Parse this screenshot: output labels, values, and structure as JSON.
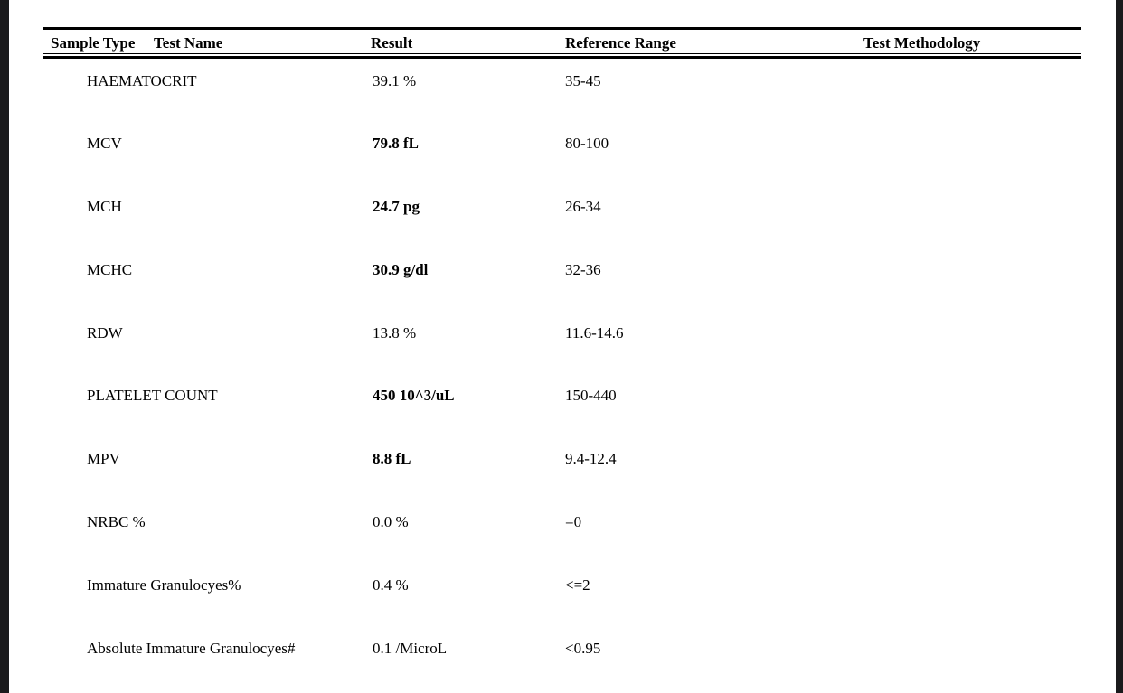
{
  "colors": {
    "frame": "#1a1a1c",
    "paper": "#ffffff",
    "ink": "#000000"
  },
  "report_table": {
    "columns": [
      {
        "label": "Sample Type"
      },
      {
        "label": "Test Name"
      },
      {
        "label": "Result"
      },
      {
        "label": "Reference Range"
      },
      {
        "label": "Test Methodology"
      }
    ],
    "rows": [
      {
        "test_name": "HAEMATOCRIT",
        "result": "39.1 %",
        "result_abnormal": false,
        "reference_range": "35-45",
        "test_methodology": ""
      },
      {
        "test_name": "MCV",
        "result": "79.8 fL",
        "result_abnormal": true,
        "reference_range": "80-100",
        "test_methodology": ""
      },
      {
        "test_name": "MCH",
        "result": "24.7 pg",
        "result_abnormal": true,
        "reference_range": "26-34",
        "test_methodology": ""
      },
      {
        "test_name": "MCHC",
        "result": "30.9 g/dl",
        "result_abnormal": true,
        "reference_range": "32-36",
        "test_methodology": ""
      },
      {
        "test_name": "RDW",
        "result": "13.8 %",
        "result_abnormal": false,
        "reference_range": "11.6-14.6",
        "test_methodology": ""
      },
      {
        "test_name": "PLATELET COUNT",
        "result": "450 10^3/uL",
        "result_abnormal": true,
        "reference_range": "150-440",
        "test_methodology": ""
      },
      {
        "test_name": "MPV",
        "result": "8.8 fL",
        "result_abnormal": true,
        "reference_range": "9.4-12.4",
        "test_methodology": ""
      },
      {
        "test_name": "NRBC %",
        "result": "0.0 %",
        "result_abnormal": false,
        "reference_range": "=0",
        "test_methodology": ""
      },
      {
        "test_name": "Immature Granulocyes%",
        "result": "0.4 %",
        "result_abnormal": false,
        "reference_range": "<=2",
        "test_methodology": ""
      },
      {
        "test_name": "Absolute Immature Granulocyes#",
        "result": "0.1 /MicroL",
        "result_abnormal": false,
        "reference_range": "<0.95",
        "test_methodology": ""
      }
    ]
  }
}
